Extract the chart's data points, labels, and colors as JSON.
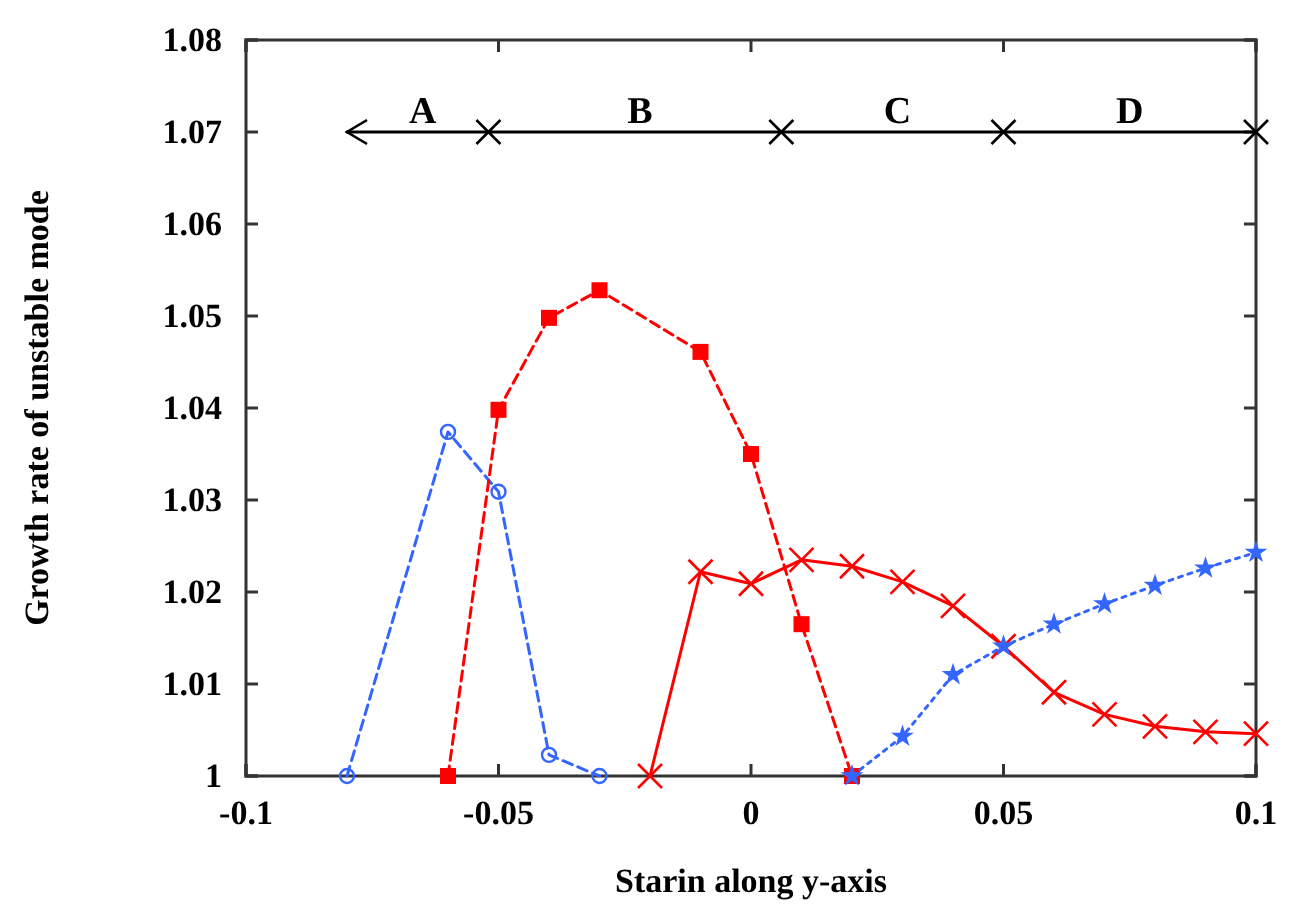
{
  "chart_data": {
    "type": "line",
    "xlabel": "Starin along y-axis",
    "ylabel": "Growth rate of unstable mode",
    "xlim": [
      -0.1,
      0.1
    ],
    "xticks": [
      -0.1,
      -0.05,
      0,
      0.05,
      0.1
    ],
    "ylim": [
      1,
      1.08
    ],
    "yticks": [
      1,
      1.01,
      1.02,
      1.03,
      1.04,
      1.05,
      1.06,
      1.07,
      1.08
    ],
    "grid": false,
    "series": [
      {
        "color": "#3366ff",
        "marker": "circle",
        "line_style": "dashed",
        "x": [
          -0.08,
          -0.06,
          -0.05,
          -0.04,
          -0.03
        ],
        "values": [
          1,
          1.0374,
          1.0309,
          1.0023,
          1
        ]
      },
      {
        "color": "#ff0000",
        "marker": "square",
        "line_style": "dashed",
        "x": [
          -0.06,
          -0.05,
          -0.04,
          -0.03,
          -0.01,
          0,
          0.01,
          0.02
        ],
        "values": [
          1,
          1.0398,
          1.0498,
          1.0528,
          1.0461,
          1.035,
          1.0165,
          1
        ]
      },
      {
        "color": "#ff0000",
        "marker": "cross",
        "line_style": "solid",
        "x": [
          -0.02,
          -0.01,
          0,
          0.01,
          0.02,
          0.03,
          0.04,
          0.05,
          0.06,
          0.07,
          0.08,
          0.09,
          0.1
        ],
        "values": [
          1,
          1.0222,
          1.0209,
          1.0235,
          1.0228,
          1.0211,
          1.0185,
          1.0141,
          1.0091,
          1.0067,
          1.0054,
          1.0048,
          1.0046
        ]
      },
      {
        "color": "#3366ff",
        "marker": "star",
        "line_style": "dotted",
        "x": [
          0.02,
          0.03,
          0.04,
          0.05,
          0.06,
          0.07,
          0.08,
          0.09,
          0.1
        ],
        "values": [
          1,
          1.0043,
          1.011,
          1.0141,
          1.0165,
          1.0187,
          1.0207,
          1.0226,
          1.0243
        ]
      },
      {
        "color": "#000000",
        "marker": "cross",
        "line_style": "solid",
        "x": [
          -0.08,
          -0.052,
          0.006,
          0.05,
          0.1
        ],
        "values": [
          1.07,
          1.07,
          1.07,
          1.07,
          1.07
        ]
      }
    ],
    "annotations": [
      {
        "text": "A",
        "x": -0.065,
        "y": 1.0705
      },
      {
        "text": "B",
        "x": -0.022,
        "y": 1.0705
      },
      {
        "text": "C",
        "x": 0.029,
        "y": 1.0705
      },
      {
        "text": "D",
        "x": 0.075,
        "y": 1.0705
      }
    ]
  }
}
